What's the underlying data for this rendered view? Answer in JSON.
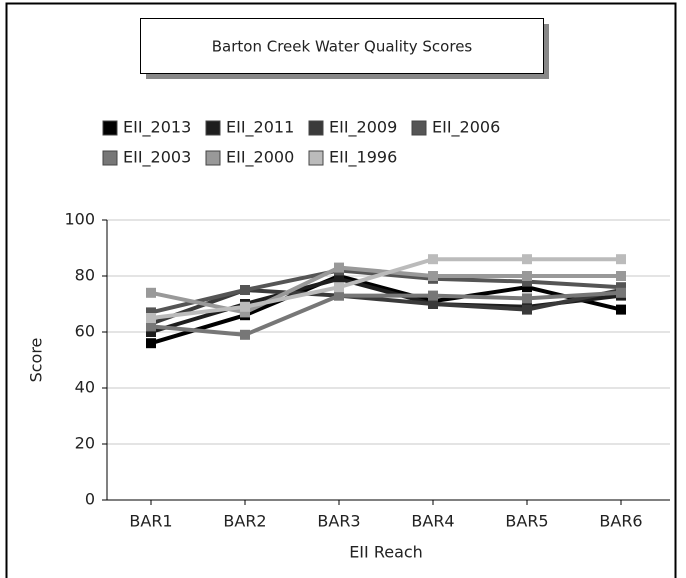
{
  "chart_data": {
    "type": "line",
    "title": "Barton Creek Water Quality Scores",
    "x_label": "EII Reach",
    "y_label": "Score",
    "categories": [
      "BAR1",
      "BAR2",
      "BAR3",
      "BAR4",
      "BAR5",
      "BAR6"
    ],
    "series": [
      {
        "name": "EII_2013",
        "color": "#000000",
        "values": [
          56,
          66,
          80,
          71,
          76,
          68
        ]
      },
      {
        "name": "EII_2011",
        "color": "#1e1e1e",
        "values": [
          60,
          70,
          79,
          70,
          69,
          73
        ]
      },
      {
        "name": "EII_2009",
        "color": "#3a3a3a",
        "values": [
          63,
          75,
          73,
          70,
          68,
          75
        ]
      },
      {
        "name": "EII_2006",
        "color": "#555555",
        "values": [
          67,
          75,
          82,
          79,
          78,
          76
        ]
      },
      {
        "name": "EII_2003",
        "color": "#777777",
        "values": [
          62,
          59,
          73,
          73,
          72,
          74
        ]
      },
      {
        "name": "EII_2000",
        "color": "#999999",
        "values": [
          74,
          67,
          83,
          80,
          80,
          80
        ]
      },
      {
        "name": "EII_1996",
        "color": "#bbbbbb",
        "values": [
          65,
          69,
          76,
          86,
          86,
          86
        ]
      }
    ],
    "ylim": [
      0,
      100
    ],
    "yticks": [
      0,
      20,
      40,
      60,
      80,
      100
    ],
    "grid": true
  }
}
